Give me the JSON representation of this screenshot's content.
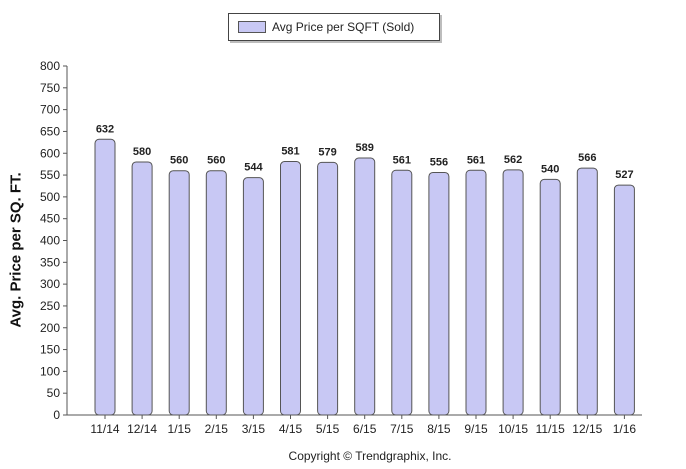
{
  "chart_data": {
    "type": "bar",
    "title": "",
    "xlabel": "",
    "ylabel": "Avg. Price per SQ. FT.",
    "ylim": [
      0,
      800
    ],
    "ytick_step": 50,
    "grid": false,
    "legend_position": "top-center",
    "categories": [
      "11/14",
      "12/14",
      "1/15",
      "2/15",
      "3/15",
      "4/15",
      "5/15",
      "6/15",
      "7/15",
      "8/15",
      "9/15",
      "10/15",
      "11/15",
      "12/15",
      "1/16"
    ],
    "series": [
      {
        "name": "Avg Price per SQFT (Sold)",
        "color": "#c8c8f4",
        "values": [
          632,
          580,
          560,
          560,
          544,
          581,
          579,
          589,
          561,
          556,
          561,
          562,
          540,
          566,
          527
        ]
      }
    ]
  },
  "footer": {
    "copyright": "Copyright © Trendgraphix, Inc."
  }
}
